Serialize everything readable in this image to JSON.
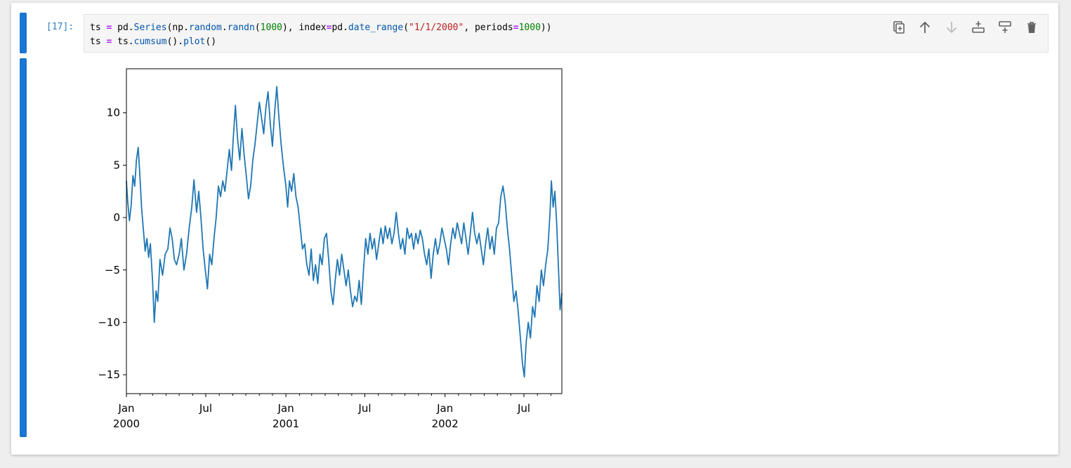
{
  "cell": {
    "prompt": "[17]:",
    "code_lines": [
      [
        {
          "t": "ts ",
          "c": ""
        },
        {
          "t": "=",
          "c": "kw"
        },
        {
          "t": " pd.",
          "c": ""
        },
        {
          "t": "Series",
          "c": "attr"
        },
        {
          "t": "(np.",
          "c": ""
        },
        {
          "t": "random",
          "c": "attr"
        },
        {
          "t": ".",
          "c": ""
        },
        {
          "t": "randn",
          "c": "attr"
        },
        {
          "t": "(",
          "c": ""
        },
        {
          "t": "1000",
          "c": "num"
        },
        {
          "t": "), index",
          "c": ""
        },
        {
          "t": "=",
          "c": "kw"
        },
        {
          "t": "pd.",
          "c": ""
        },
        {
          "t": "date_range",
          "c": "attr"
        },
        {
          "t": "(",
          "c": ""
        },
        {
          "t": "\"1/1/2000\"",
          "c": "str"
        },
        {
          "t": ", periods",
          "c": ""
        },
        {
          "t": "=",
          "c": "kw"
        },
        {
          "t": "1000",
          "c": "num"
        },
        {
          "t": "))",
          "c": ""
        }
      ],
      [
        {
          "t": "ts ",
          "c": ""
        },
        {
          "t": "=",
          "c": "kw"
        },
        {
          "t": " ts.",
          "c": ""
        },
        {
          "t": "cumsum",
          "c": "attr"
        },
        {
          "t": "().",
          "c": ""
        },
        {
          "t": "plot",
          "c": "attr"
        },
        {
          "t": "()",
          "c": ""
        }
      ]
    ],
    "toolbar": [
      {
        "name": "duplicate-cell-icon",
        "icon": "copy"
      },
      {
        "name": "move-up-icon",
        "icon": "arrow-up"
      },
      {
        "name": "move-down-icon",
        "icon": "arrow-down"
      },
      {
        "name": "insert-above-icon",
        "icon": "insert-above"
      },
      {
        "name": "insert-below-icon",
        "icon": "insert-below"
      },
      {
        "name": "delete-cell-icon",
        "icon": "trash"
      }
    ],
    "bar_color": "#1976d2",
    "prompt_color": "#307fc1"
  },
  "chart_data": {
    "type": "line",
    "line_color": "#1f77b4",
    "y_ticks": [
      10,
      5,
      0,
      -5,
      -10,
      -15
    ],
    "y_tick_labels": [
      "10",
      "5",
      "0",
      "−5",
      "−10",
      "−15"
    ],
    "ylim": [
      -16.8,
      14.2
    ],
    "x_range": [
      "2000-01-01",
      "2002-09-26"
    ],
    "x_major_ticks": [
      {
        "date": "2000-01-01",
        "label": "Jan",
        "sub": "2000"
      },
      {
        "date": "2000-07-01",
        "label": "Jul",
        "sub": ""
      },
      {
        "date": "2001-01-01",
        "label": "Jan",
        "sub": "2001"
      },
      {
        "date": "2001-07-01",
        "label": "Jul",
        "sub": ""
      },
      {
        "date": "2002-01-01",
        "label": "Jan",
        "sub": "2002"
      },
      {
        "date": "2002-07-01",
        "label": "Jul",
        "sub": ""
      }
    ],
    "x_minor_ticks": [
      "2000-02-01",
      "2000-03-01",
      "2000-04-01",
      "2000-05-01",
      "2000-06-01",
      "2000-08-01",
      "2000-09-01",
      "2000-10-01",
      "2000-11-01",
      "2000-12-01",
      "2001-02-01",
      "2001-03-01",
      "2001-04-01",
      "2001-05-01",
      "2001-06-01",
      "2001-08-01",
      "2001-09-01",
      "2001-10-01",
      "2001-11-01",
      "2001-12-01",
      "2002-02-01",
      "2002-03-01",
      "2002-04-01",
      "2002-05-01",
      "2002-06-01",
      "2002-08-01",
      "2002-09-01"
    ],
    "series": [
      {
        "points": [
          [
            "2000-01-01",
            3.5
          ],
          [
            "2000-01-04",
            1.5
          ],
          [
            "2000-01-08",
            -0.3
          ],
          [
            "2000-01-12",
            1.2
          ],
          [
            "2000-01-16",
            4.0
          ],
          [
            "2000-01-20",
            3.0
          ],
          [
            "2000-01-24",
            5.5
          ],
          [
            "2000-01-28",
            6.7
          ],
          [
            "2000-02-01",
            4.0
          ],
          [
            "2000-02-05",
            0.8
          ],
          [
            "2000-02-09",
            -1.2
          ],
          [
            "2000-02-13",
            -3.2
          ],
          [
            "2000-02-17",
            -2.0
          ],
          [
            "2000-02-21",
            -3.8
          ],
          [
            "2000-02-25",
            -2.5
          ],
          [
            "2000-03-01",
            -6.0
          ],
          [
            "2000-03-05",
            -10.0
          ],
          [
            "2000-03-09",
            -7.0
          ],
          [
            "2000-03-13",
            -8.0
          ],
          [
            "2000-03-18",
            -4.0
          ],
          [
            "2000-03-24",
            -5.5
          ],
          [
            "2000-03-30",
            -3.5
          ],
          [
            "2000-04-05",
            -3.0
          ],
          [
            "2000-04-10",
            -1.0
          ],
          [
            "2000-04-15",
            -2.0
          ],
          [
            "2000-04-20",
            -4.0
          ],
          [
            "2000-04-25",
            -4.5
          ],
          [
            "2000-05-01",
            -3.5
          ],
          [
            "2000-05-06",
            -2.0
          ],
          [
            "2000-05-12",
            -5.0
          ],
          [
            "2000-05-18",
            -3.5
          ],
          [
            "2000-05-24",
            -1.0
          ],
          [
            "2000-05-30",
            1.0
          ],
          [
            "2000-06-04",
            3.6
          ],
          [
            "2000-06-10",
            0.5
          ],
          [
            "2000-06-15",
            2.5
          ],
          [
            "2000-06-20",
            0.0
          ],
          [
            "2000-06-25",
            -3.0
          ],
          [
            "2000-06-30",
            -5.0
          ],
          [
            "2000-07-05",
            -6.8
          ],
          [
            "2000-07-10",
            -3.5
          ],
          [
            "2000-07-15",
            -4.5
          ],
          [
            "2000-07-20",
            -2.0
          ],
          [
            "2000-07-25",
            0.0
          ],
          [
            "2000-07-30",
            3.0
          ],
          [
            "2000-08-04",
            2.0
          ],
          [
            "2000-08-09",
            3.5
          ],
          [
            "2000-08-14",
            2.5
          ],
          [
            "2000-08-19",
            4.5
          ],
          [
            "2000-08-24",
            6.5
          ],
          [
            "2000-08-29",
            4.5
          ],
          [
            "2000-09-02",
            7.5
          ],
          [
            "2000-09-07",
            10.7
          ],
          [
            "2000-09-12",
            7.5
          ],
          [
            "2000-09-17",
            5.5
          ],
          [
            "2000-09-22",
            8.5
          ],
          [
            "2000-09-27",
            6.0
          ],
          [
            "2000-10-02",
            4.0
          ],
          [
            "2000-10-07",
            1.8
          ],
          [
            "2000-10-12",
            3.0
          ],
          [
            "2000-10-17",
            5.5
          ],
          [
            "2000-10-22",
            7.0
          ],
          [
            "2000-10-27",
            9.0
          ],
          [
            "2000-11-01",
            11.0
          ],
          [
            "2000-11-06",
            9.5
          ],
          [
            "2000-11-11",
            8.0
          ],
          [
            "2000-11-16",
            10.5
          ],
          [
            "2000-11-21",
            12.0
          ],
          [
            "2000-11-26",
            9.0
          ],
          [
            "2000-12-01",
            6.8
          ],
          [
            "2000-12-06",
            10.0
          ],
          [
            "2000-12-11",
            12.5
          ],
          [
            "2000-12-16",
            9.5
          ],
          [
            "2000-12-21",
            7.0
          ],
          [
            "2000-12-26",
            5.0
          ],
          [
            "2001-01-01",
            3.0
          ],
          [
            "2001-01-05",
            1.0
          ],
          [
            "2001-01-09",
            3.5
          ],
          [
            "2001-01-14",
            2.5
          ],
          [
            "2001-01-19",
            4.2
          ],
          [
            "2001-01-24",
            2.0
          ],
          [
            "2001-01-29",
            1.0
          ],
          [
            "2001-02-03",
            -1.0
          ],
          [
            "2001-02-08",
            -3.0
          ],
          [
            "2001-02-13",
            -2.5
          ],
          [
            "2001-02-18",
            -4.5
          ],
          [
            "2001-02-23",
            -5.5
          ],
          [
            "2001-02-28",
            -3.0
          ],
          [
            "2001-03-05",
            -6.0
          ],
          [
            "2001-03-10",
            -4.5
          ],
          [
            "2001-03-15",
            -6.3
          ],
          [
            "2001-03-20",
            -3.5
          ],
          [
            "2001-03-25",
            -4.5
          ],
          [
            "2001-03-30",
            -2.0
          ],
          [
            "2001-04-04",
            -1.5
          ],
          [
            "2001-04-09",
            -4.0
          ],
          [
            "2001-04-14",
            -7.0
          ],
          [
            "2001-04-19",
            -8.3
          ],
          [
            "2001-04-24",
            -6.0
          ],
          [
            "2001-04-29",
            -4.0
          ],
          [
            "2001-05-04",
            -5.5
          ],
          [
            "2001-05-09",
            -3.5
          ],
          [
            "2001-05-14",
            -5.0
          ],
          [
            "2001-05-19",
            -6.5
          ],
          [
            "2001-05-24",
            -5.0
          ],
          [
            "2001-05-29",
            -7.0
          ],
          [
            "2001-06-03",
            -8.5
          ],
          [
            "2001-06-08",
            -7.5
          ],
          [
            "2001-06-13",
            -8.0
          ],
          [
            "2001-06-18",
            -6.0
          ],
          [
            "2001-06-23",
            -8.3
          ],
          [
            "2001-06-28",
            -5.0
          ],
          [
            "2001-07-03",
            -2.0
          ],
          [
            "2001-07-08",
            -3.5
          ],
          [
            "2001-07-13",
            -1.5
          ],
          [
            "2001-07-18",
            -3.0
          ],
          [
            "2001-07-23",
            -2.0
          ],
          [
            "2001-07-28",
            -4.0
          ],
          [
            "2001-08-02",
            -2.5
          ],
          [
            "2001-08-07",
            -1.0
          ],
          [
            "2001-08-12",
            -2.5
          ],
          [
            "2001-08-17",
            -0.8
          ],
          [
            "2001-08-22",
            -2.0
          ],
          [
            "2001-08-27",
            -1.0
          ],
          [
            "2001-09-01",
            -2.5
          ],
          [
            "2001-09-06",
            -1.5
          ],
          [
            "2001-09-11",
            0.5
          ],
          [
            "2001-09-16",
            -1.5
          ],
          [
            "2001-09-21",
            -3.0
          ],
          [
            "2001-09-26",
            -2.0
          ],
          [
            "2001-10-01",
            -3.5
          ],
          [
            "2001-10-06",
            -1.0
          ],
          [
            "2001-10-11",
            -2.0
          ],
          [
            "2001-10-16",
            -1.5
          ],
          [
            "2001-10-21",
            -3.0
          ],
          [
            "2001-10-26",
            -1.5
          ],
          [
            "2001-10-31",
            -2.5
          ],
          [
            "2001-11-05",
            -1.2
          ],
          [
            "2001-11-10",
            -2.0
          ],
          [
            "2001-11-15",
            -3.5
          ],
          [
            "2001-11-20",
            -4.5
          ],
          [
            "2001-11-25",
            -3.0
          ],
          [
            "2001-11-30",
            -5.8
          ],
          [
            "2001-12-05",
            -3.5
          ],
          [
            "2001-12-10",
            -2.0
          ],
          [
            "2001-12-15",
            -3.5
          ],
          [
            "2001-12-20",
            -2.5
          ],
          [
            "2001-12-25",
            -1.0
          ],
          [
            "2001-12-30",
            -2.0
          ],
          [
            "2002-01-04",
            -3.0
          ],
          [
            "2002-01-09",
            -4.5
          ],
          [
            "2002-01-14",
            -2.5
          ],
          [
            "2002-01-19",
            -1.0
          ],
          [
            "2002-01-24",
            -2.0
          ],
          [
            "2002-01-29",
            -0.5
          ],
          [
            "2002-02-03",
            -1.5
          ],
          [
            "2002-02-08",
            -2.5
          ],
          [
            "2002-02-13",
            -0.5
          ],
          [
            "2002-02-18",
            -2.0
          ],
          [
            "2002-02-23",
            -3.5
          ],
          [
            "2002-02-28",
            -1.5
          ],
          [
            "2002-03-05",
            0.5
          ],
          [
            "2002-03-10",
            -1.5
          ],
          [
            "2002-03-15",
            -2.5
          ],
          [
            "2002-03-20",
            -1.5
          ],
          [
            "2002-03-25",
            -3.0
          ],
          [
            "2002-03-30",
            -4.5
          ],
          [
            "2002-04-04",
            -2.5
          ],
          [
            "2002-04-09",
            -1.0
          ],
          [
            "2002-04-14",
            -3.0
          ],
          [
            "2002-04-19",
            -1.8
          ],
          [
            "2002-04-24",
            -3.5
          ],
          [
            "2002-04-29",
            -1.0
          ],
          [
            "2002-05-04",
            -0.5
          ],
          [
            "2002-05-09",
            2.0
          ],
          [
            "2002-05-14",
            3.0
          ],
          [
            "2002-05-19",
            1.5
          ],
          [
            "2002-05-24",
            -1.0
          ],
          [
            "2002-05-29",
            -3.0
          ],
          [
            "2002-06-03",
            -5.5
          ],
          [
            "2002-06-08",
            -8.0
          ],
          [
            "2002-06-13",
            -7.0
          ],
          [
            "2002-06-18",
            -9.0
          ],
          [
            "2002-06-23",
            -11.5
          ],
          [
            "2002-06-28",
            -14.0
          ],
          [
            "2002-07-02",
            -15.2
          ],
          [
            "2002-07-06",
            -12.0
          ],
          [
            "2002-07-11",
            -10.0
          ],
          [
            "2002-07-16",
            -11.5
          ],
          [
            "2002-07-21",
            -8.5
          ],
          [
            "2002-07-26",
            -9.5
          ],
          [
            "2002-07-31",
            -6.5
          ],
          [
            "2002-08-05",
            -8.0
          ],
          [
            "2002-08-10",
            -5.0
          ],
          [
            "2002-08-15",
            -6.5
          ],
          [
            "2002-08-20",
            -4.5
          ],
          [
            "2002-08-25",
            -3.0
          ],
          [
            "2002-08-30",
            0.5
          ],
          [
            "2002-09-02",
            3.5
          ],
          [
            "2002-09-06",
            1.0
          ],
          [
            "2002-09-10",
            2.5
          ],
          [
            "2002-09-14",
            -0.5
          ],
          [
            "2002-09-18",
            -4.5
          ],
          [
            "2002-09-22",
            -8.8
          ],
          [
            "2002-09-26",
            -7.2
          ]
        ]
      }
    ]
  }
}
